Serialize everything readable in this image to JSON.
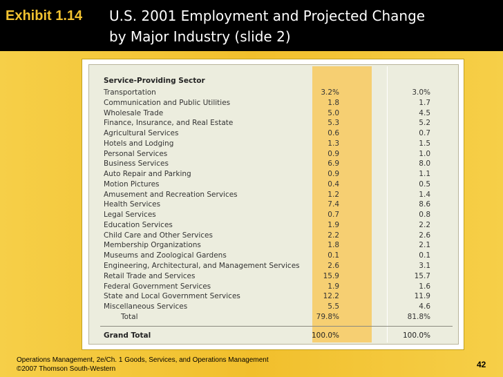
{
  "header": {
    "exhibit": "Exhibit 1.14",
    "title_line1": "U.S. 2001 Employment and Projected Change",
    "title_line2": "by Major Industry (slide 2)"
  },
  "table": {
    "section_title": "Service-Providing Sector",
    "rows": [
      {
        "name": "Transportation",
        "v1": "3.2%",
        "v2": "3.0%"
      },
      {
        "name": "Communication and Public Utilities",
        "v1": "1.8",
        "v2": "1.7"
      },
      {
        "name": "Wholesale Trade",
        "v1": "5.0",
        "v2": "4.5"
      },
      {
        "name": "Finance, Insurance, and Real Estate",
        "v1": "5.3",
        "v2": "5.2"
      },
      {
        "name": "Agricultural Services",
        "v1": "0.6",
        "v2": "0.7"
      },
      {
        "name": "Hotels and Lodging",
        "v1": "1.3",
        "v2": "1.5"
      },
      {
        "name": "Personal Services",
        "v1": "0.9",
        "v2": "1.0"
      },
      {
        "name": "Business Services",
        "v1": "6.9",
        "v2": "8.0"
      },
      {
        "name": "Auto Repair and Parking",
        "v1": "0.9",
        "v2": "1.1"
      },
      {
        "name": "Motion Pictures",
        "v1": "0.4",
        "v2": "0.5"
      },
      {
        "name": "Amusement and Recreation Services",
        "v1": "1.2",
        "v2": "1.4"
      },
      {
        "name": "Health Services",
        "v1": "7.4",
        "v2": "8.6"
      },
      {
        "name": "Legal Services",
        "v1": "0.7",
        "v2": "0.8"
      },
      {
        "name": "Education Services",
        "v1": "1.9",
        "v2": "2.2"
      },
      {
        "name": "Child Care and Other Services",
        "v1": "2.2",
        "v2": "2.6"
      },
      {
        "name": "Membership Organizations",
        "v1": "1.8",
        "v2": "2.1"
      },
      {
        "name": "Museums and Zoological Gardens",
        "v1": "0.1",
        "v2": "0.1"
      },
      {
        "name": "Engineering, Architectural, and Management Services",
        "v1": "2.6",
        "v2": "3.1"
      },
      {
        "name": "Retail Trade and Services",
        "v1": "15.9",
        "v2": "15.7"
      },
      {
        "name": "Federal Government Services",
        "v1": "1.9",
        "v2": "1.6"
      },
      {
        "name": "State and Local Government Services",
        "v1": "12.2",
        "v2": "11.9"
      },
      {
        "name": "Miscellaneous Services",
        "v1": "5.5",
        "v2": "4.6"
      },
      {
        "name": "Total",
        "v1": "79.8%",
        "v2": "81.8%",
        "total": true
      }
    ],
    "grand_total": {
      "name": "Grand Total",
      "v1": "100.0%",
      "v2": "100.0%"
    }
  },
  "footer": {
    "line1": "Operations Management, 2e/Ch. 1 Goods, Services, and Operations Management",
    "line2": "©2007 Thomson South-Western",
    "page_number": "42"
  }
}
